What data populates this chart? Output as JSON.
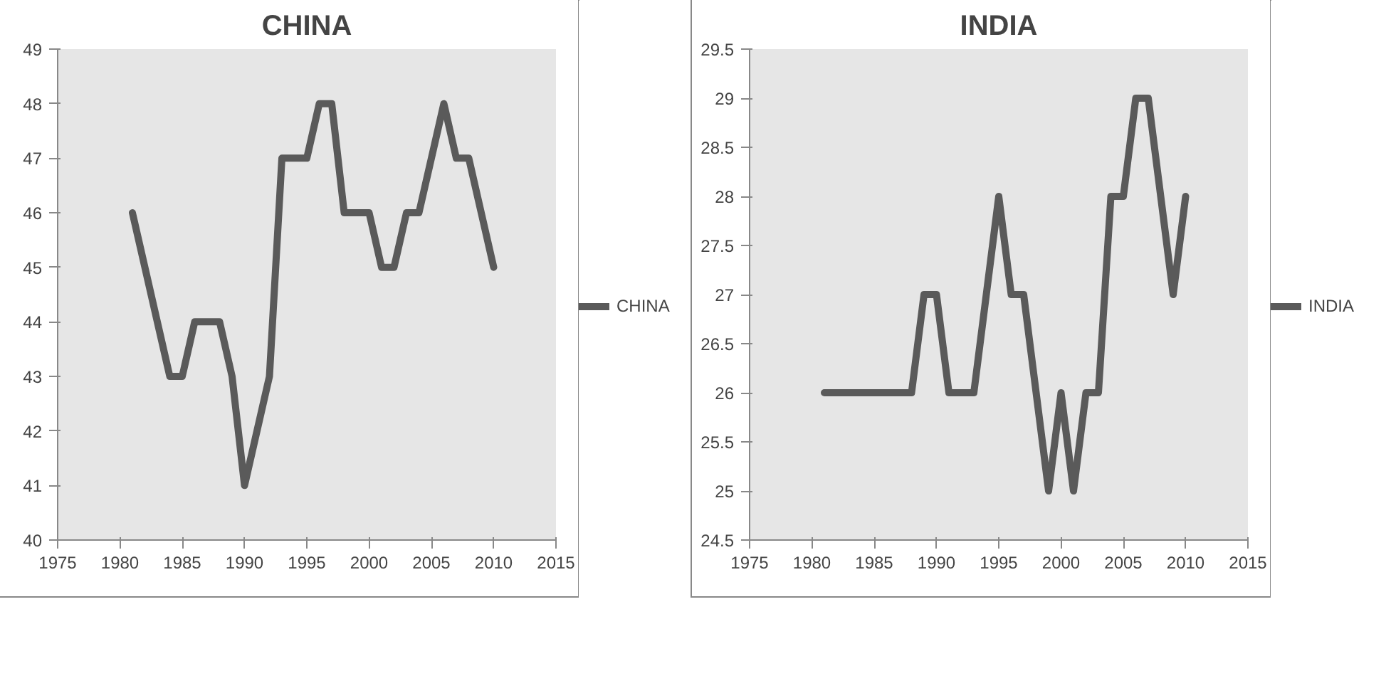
{
  "chart_data": [
    {
      "type": "line",
      "title": "CHINA",
      "x": [
        1981,
        1982,
        1983,
        1984,
        1985,
        1986,
        1987,
        1988,
        1989,
        1990,
        1991,
        1992,
        1993,
        1994,
        1995,
        1996,
        1997,
        1998,
        1999,
        2000,
        2001,
        2002,
        2003,
        2004,
        2005,
        2006,
        2007,
        2008,
        2009,
        2010
      ],
      "series": [
        {
          "name": "CHINA",
          "color": "#5a5a5a",
          "values": [
            46,
            45,
            44,
            43,
            43,
            44,
            44,
            44,
            43,
            41,
            42,
            43,
            47,
            47,
            47,
            48,
            48,
            46,
            46,
            46,
            45,
            45,
            46,
            46,
            47,
            48,
            47,
            47,
            46,
            45
          ]
        }
      ],
      "xlim": [
        1975,
        2015
      ],
      "xticks": [
        1975,
        1980,
        1985,
        1990,
        1995,
        2000,
        2005,
        2010,
        2015
      ],
      "ylim": [
        40,
        49
      ],
      "yticks": [
        40,
        41,
        42,
        43,
        44,
        45,
        46,
        47,
        48,
        49
      ],
      "legend": "right",
      "marker": "none",
      "line_style": "solid"
    },
    {
      "type": "line",
      "title": "INDIA",
      "x": [
        1981,
        1982,
        1983,
        1984,
        1985,
        1986,
        1987,
        1988,
        1989,
        1990,
        1991,
        1992,
        1993,
        1994,
        1995,
        1996,
        1997,
        1998,
        1999,
        2000,
        2001,
        2002,
        2003,
        2004,
        2005,
        2006,
        2007,
        2008,
        2009,
        2010
      ],
      "series": [
        {
          "name": "INDIA",
          "color": "#5a5a5a",
          "values": [
            26,
            26,
            26,
            26,
            26,
            26,
            26,
            26,
            27,
            27,
            26,
            26,
            26,
            27,
            28,
            27,
            27,
            26,
            25,
            26,
            25,
            26,
            26,
            28,
            28,
            29,
            29,
            28,
            27,
            28
          ]
        }
      ],
      "xlim": [
        1975,
        2015
      ],
      "xticks": [
        1975,
        1980,
        1985,
        1990,
        1995,
        2000,
        2005,
        2010,
        2015
      ],
      "ylim": [
        24.5,
        29.5
      ],
      "yticks": [
        24.5,
        25,
        25.5,
        26,
        26.5,
        27,
        27.5,
        28,
        28.5,
        29,
        29.5
      ],
      "legend": "right",
      "marker": "none",
      "line_style": "solid"
    }
  ]
}
